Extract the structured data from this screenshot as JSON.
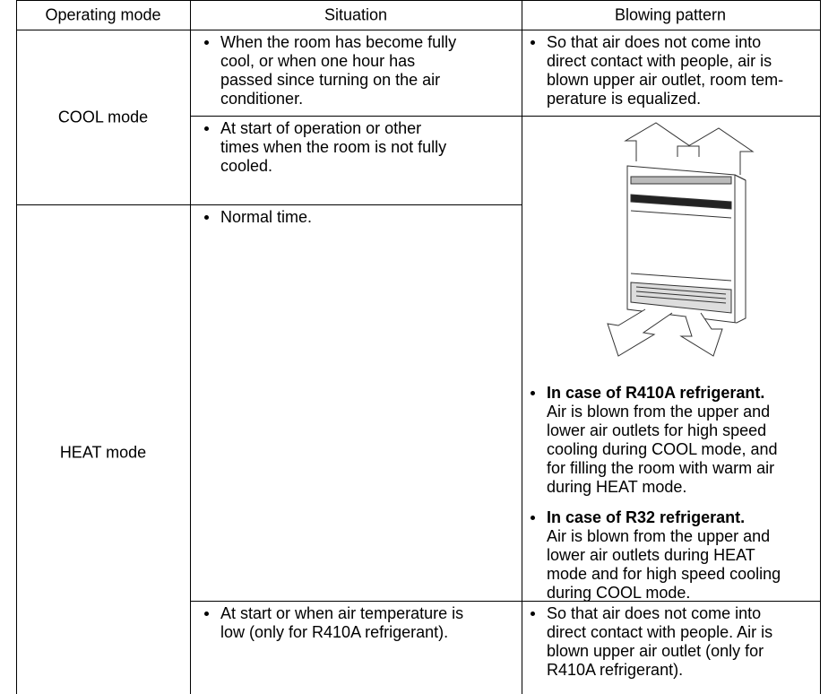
{
  "table": {
    "header": [
      "Operating mode",
      "Situation",
      "Blowing pattern"
    ],
    "modes": [
      "COOL mode",
      "HEAT mode"
    ],
    "situations": [
      [
        "When the room has become fully",
        "cool, or when one hour has",
        "passed since turning on the air",
        "conditioner."
      ],
      [
        "At start of operation or other",
        "times when the room is not fully",
        "cooled."
      ],
      [
        "Normal time."
      ],
      [
        "At start or when air temperature is",
        "low (only for R410A refrigerant)."
      ]
    ],
    "patterns": [
      [
        "So that air does not come into",
        "direct contact with people, air is",
        "blown upper air outlet, room tem-",
        "perature is equalized."
      ],
      [
        "So that air does not come into",
        "direct contact with people. Air is",
        "blown upper air outlet (only for",
        "R410A refrigerant)."
      ]
    ],
    "notes": [
      {
        "heading": "In case of R410A refrigerant.",
        "lines": [
          "Air is blown from the upper and",
          "lower air outlets for high speed",
          "cooling during COOL mode, and",
          "for filling the room with warm air",
          "during HEAT mode."
        ]
      },
      {
        "heading": "In case of R32 refrigerant.",
        "lines": [
          "Air is blown from the upper and",
          "lower air outlets during HEAT",
          "mode and for high speed cooling",
          "during COOL mode."
        ]
      }
    ]
  }
}
